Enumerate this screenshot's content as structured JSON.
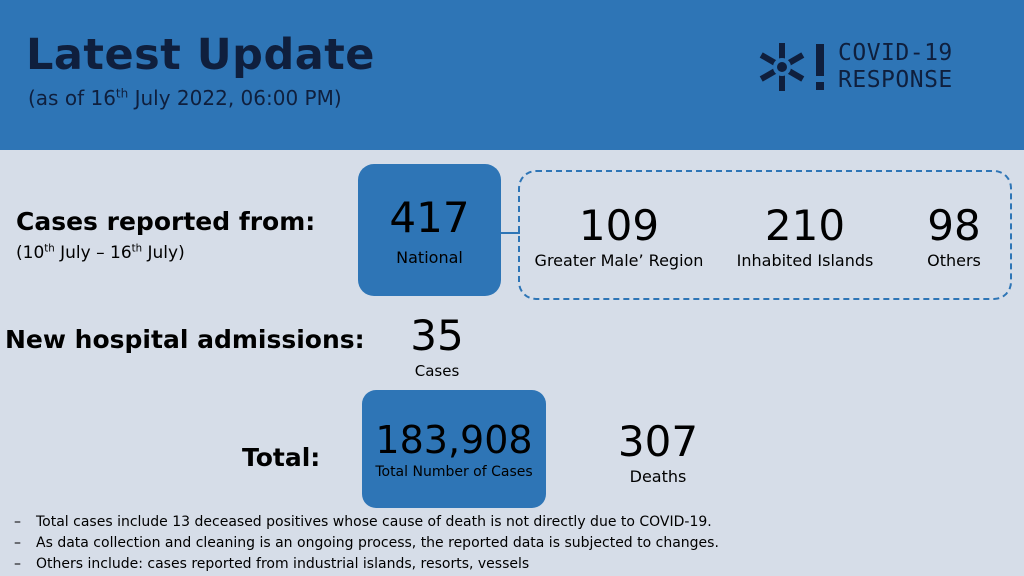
{
  "header": {
    "title": "Latest Update",
    "subtitle_prefix": "(as of 16",
    "subtitle_sup": "th",
    "subtitle_suffix": " July 2022, 06:00 PM)",
    "bg_color": "#2e75b6"
  },
  "logo": {
    "icon": "snowflake-alert-icon",
    "line1": "COVID-19",
    "line2": "RESPONSE"
  },
  "cases": {
    "label": "Cases reported from:",
    "range_a": "(10",
    "range_a_sup": "th",
    "range_b": " July – 16",
    "range_b_sup": "th",
    "range_c": " July)",
    "national": {
      "value": "417",
      "label": "National"
    },
    "regions": [
      {
        "value": "109",
        "label": "Greater Male’ Region"
      },
      {
        "value": "210",
        "label": "Inhabited Islands"
      },
      {
        "value": "98",
        "label": "Others"
      }
    ]
  },
  "admissions": {
    "label": "New hospital admissions:",
    "value": "35",
    "unit": "Cases"
  },
  "totals": {
    "label": "Total:",
    "cases_value": "183,908",
    "cases_label": "Total Number of Cases",
    "deaths_value": "307",
    "deaths_label": "Deaths"
  },
  "notes": [
    "Total cases include 13 deceased positives whose cause of death is not directly due to COVID-19.",
    "As data collection and cleaning is an ongoing process, the reported data is subjected to changes.",
    "Others include: cases reported from industrial islands, resorts, vessels"
  ],
  "note_bullet": "–"
}
